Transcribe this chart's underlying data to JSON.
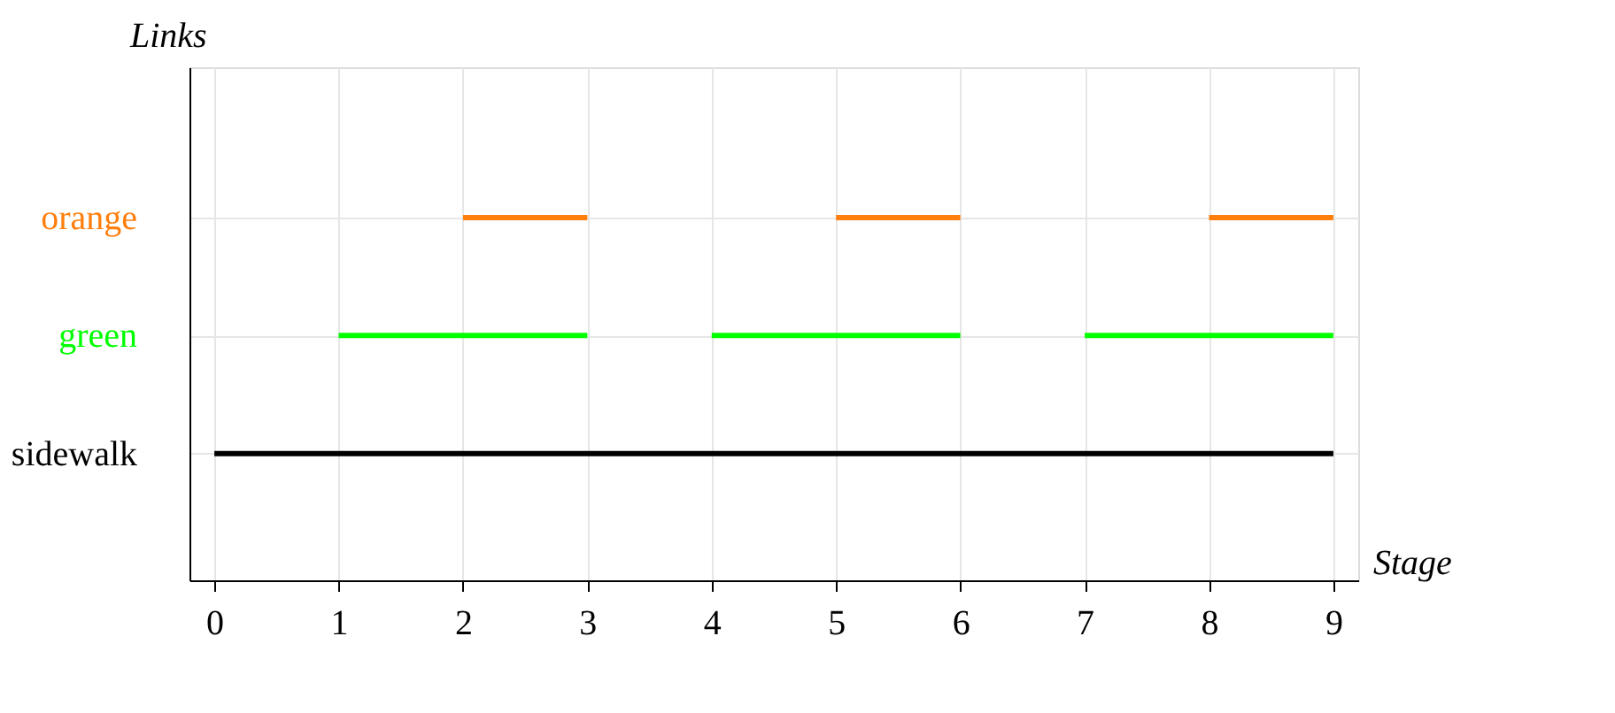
{
  "chart_data": {
    "type": "bar",
    "orientation": "horizontal",
    "xlabel": "Stage",
    "ylabel": "Links",
    "categories": [
      "orange",
      "green",
      "sidewalk"
    ],
    "xlim": [
      -0.2,
      9.2
    ],
    "xticks": [
      0,
      1,
      2,
      3,
      4,
      5,
      6,
      7,
      8,
      9
    ],
    "grid": true,
    "legend": false,
    "series": [
      {
        "colors": [
          "#ff7f0e",
          "#00ff00",
          "#000000"
        ],
        "base": [
          2,
          1,
          0
        ],
        "values": [
          1,
          2,
          9
        ]
      },
      {
        "colors": [
          "#ff7f0e",
          "#00ff00",
          null
        ],
        "base": [
          5,
          4,
          null
        ],
        "values": [
          1,
          2,
          null
        ]
      },
      {
        "colors": [
          "#ff7f0e",
          "#00ff00",
          null
        ],
        "base": [
          8,
          7,
          null
        ],
        "values": [
          1,
          2,
          null
        ]
      }
    ]
  }
}
